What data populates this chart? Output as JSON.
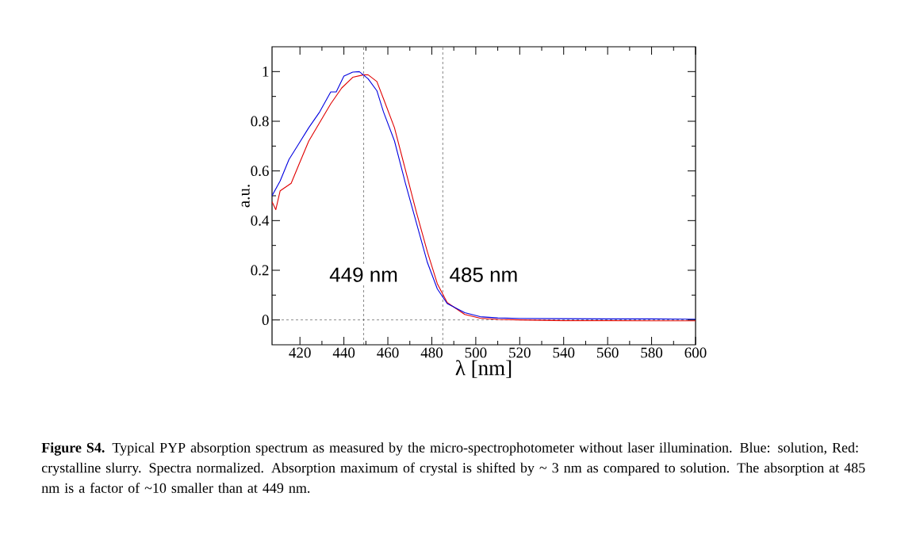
{
  "chart_data": {
    "type": "line",
    "xlabel": "λ [nm]",
    "ylabel": "a.u.",
    "xlim": [
      407.3,
      600
    ],
    "ylim": [
      -0.1,
      1.1
    ],
    "xticks": [
      420,
      440,
      460,
      480,
      500,
      520,
      540,
      560,
      580,
      600
    ],
    "yticks": [
      0,
      0.2,
      0.4,
      0.6,
      0.8,
      1
    ],
    "marker": "none",
    "line_style": "solid",
    "series": [
      {
        "color": "#e00000",
        "x": [
          407.3,
          409,
          411,
          416,
          419.5,
          424,
          429,
          434,
          439,
          444,
          449,
          451,
          455,
          458,
          463,
          468,
          473,
          478,
          482.5,
          487,
          495,
          502,
          510,
          520,
          540,
          560,
          580,
          600
        ],
        "values": [
          0.476,
          0.444,
          0.52,
          0.55,
          0.625,
          0.72,
          0.795,
          0.87,
          0.934,
          0.977,
          0.987,
          0.987,
          0.96,
          0.891,
          0.774,
          0.604,
          0.433,
          0.274,
          0.146,
          0.07,
          0.022,
          0.007,
          0.002,
          0,
          -0.003,
          -0.003,
          -0.004,
          -0.004
        ]
      },
      {
        "color": "#0000e0",
        "x": [
          407.3,
          411,
          415,
          419.5,
          424,
          429,
          434,
          436.5,
          440,
          444,
          447,
          451,
          455,
          458,
          463,
          468,
          473,
          478,
          482.5,
          487,
          495,
          502,
          510,
          520,
          540,
          560,
          580,
          600
        ],
        "values": [
          0.5,
          0.56,
          0.646,
          0.71,
          0.774,
          0.838,
          0.918,
          0.918,
          0.982,
          0.998,
          1.0,
          0.971,
          0.923,
          0.838,
          0.721,
          0.55,
          0.39,
          0.231,
          0.125,
          0.066,
          0.029,
          0.013,
          0.008,
          0.006,
          0.005,
          0.004,
          0.004,
          0.003
        ]
      }
    ],
    "ref_lines": [
      {
        "axis": "x",
        "value": 449,
        "line_style": "dashed",
        "label": "449 nm"
      },
      {
        "axis": "x",
        "value": 485,
        "line_style": "dashed",
        "label": "485 nm"
      },
      {
        "axis": "y",
        "value": 0,
        "line_style": "dashed"
      }
    ],
    "annotations": [
      "**Figure S4.** Typical PYP absorption spectrum as measured by the micro-spectrophotometer without laser illumination. Blue: solution, Red: crystalline slurry. Spectra normalized. Absorption maximum of crystal is shifted by ~ 3 nm as compared to solution. The absorption at 485 nm is a factor of ~10 smaller than at 449 nm."
    ]
  }
}
